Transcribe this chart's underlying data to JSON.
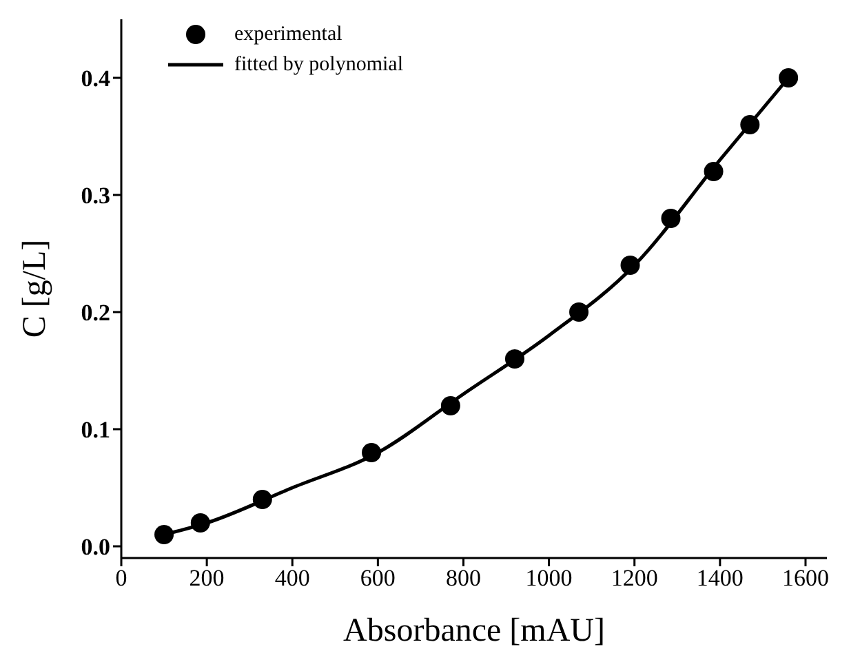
{
  "chart_data": {
    "type": "scatter",
    "xlabel": "Absorbance [mAU]",
    "ylabel": "C [g/L]",
    "xlim": [
      0,
      1650
    ],
    "ylim": [
      -0.01,
      0.45
    ],
    "xticks": [
      0,
      200,
      400,
      600,
      800,
      1000,
      1200,
      1400,
      1600
    ],
    "yticks": [
      {
        "value": 0,
        "label": "0.0"
      },
      0.1,
      0.2,
      0.3,
      0.4
    ],
    "grid": false,
    "legend": "top left",
    "series": [
      {
        "name": "experimental",
        "marker": "circle",
        "color": "#000000",
        "x": [
          100,
          185,
          330,
          585,
          770,
          920,
          1070,
          1190,
          1285,
          1385,
          1470,
          1560
        ],
        "values": [
          0.01,
          0.02,
          0.04,
          0.08,
          0.12,
          0.16,
          0.2,
          0.24,
          0.28,
          0.32,
          0.36,
          0.4
        ]
      },
      {
        "name": "fitted by polynomial",
        "type": "line",
        "marker": "none",
        "line_style": "solid",
        "color": "#000000",
        "x": [
          100,
          200,
          400,
          600,
          800,
          1000,
          1200,
          1400,
          1560
        ],
        "values": [
          0.01,
          0.02,
          0.05,
          0.08,
          0.13,
          0.18,
          0.24,
          0.33,
          0.4
        ]
      }
    ]
  }
}
